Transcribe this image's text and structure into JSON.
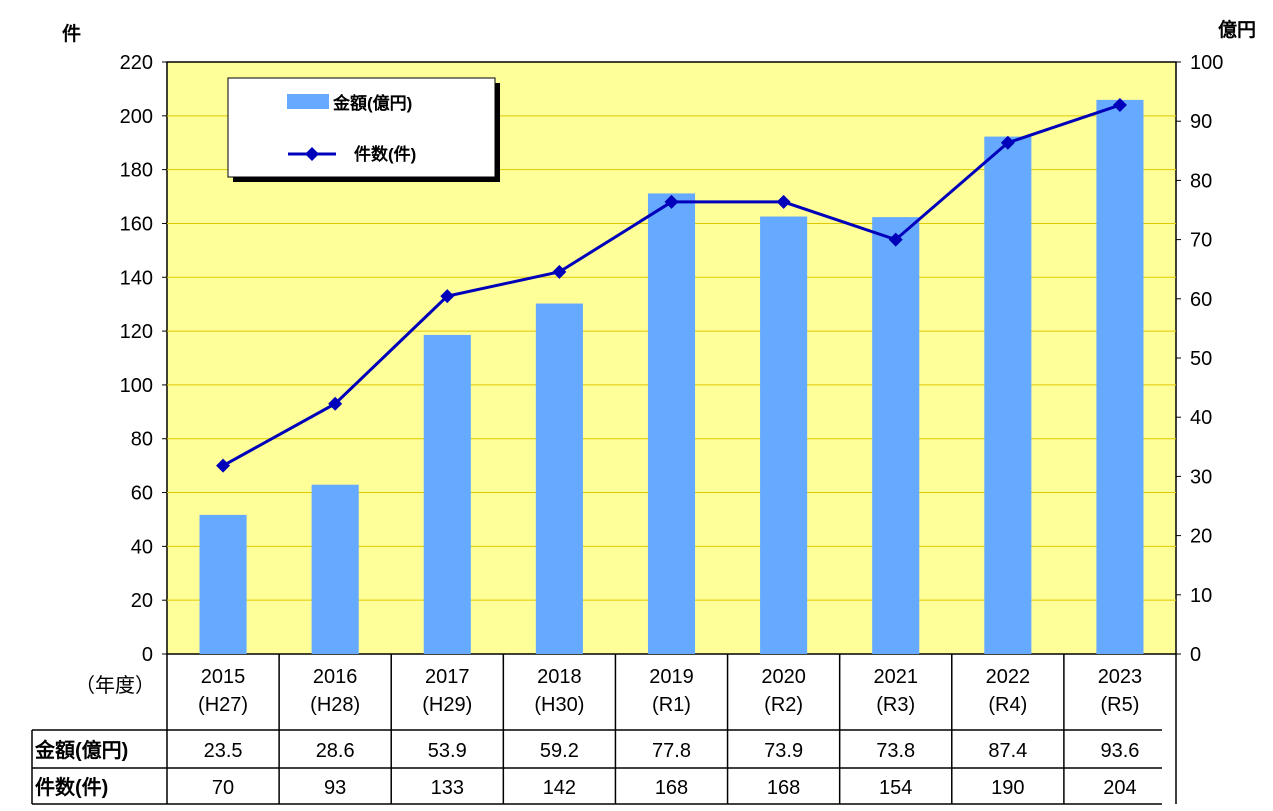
{
  "chart_data": {
    "type": "bar",
    "left_axis_unit": "件",
    "right_axis_unit": "億円",
    "year_label": "（年度）",
    "categories": [
      {
        "year": "2015",
        "era": "(H27)"
      },
      {
        "year": "2016",
        "era": "(H28)"
      },
      {
        "year": "2017",
        "era": "(H29)"
      },
      {
        "year": "2018",
        "era": "(H30)"
      },
      {
        "year": "2019",
        "era": "(R1)"
      },
      {
        "year": "2020",
        "era": "(R2)"
      },
      {
        "year": "2021",
        "era": "(R3)"
      },
      {
        "year": "2022",
        "era": "(R4)"
      },
      {
        "year": "2023",
        "era": "(R5)"
      }
    ],
    "y_left": {
      "range": [
        0,
        220
      ],
      "ticks": [
        0,
        20,
        40,
        60,
        80,
        100,
        120,
        140,
        160,
        180,
        200,
        220
      ]
    },
    "y_right": {
      "range": [
        0,
        100
      ],
      "ticks": [
        0,
        10,
        20,
        30,
        40,
        50,
        60,
        70,
        80,
        90,
        100
      ]
    },
    "grid": true,
    "legend_placement": "top-left",
    "series": [
      {
        "name": "金額(億円)",
        "type": "bar",
        "axis": "right",
        "color": "#66aaff",
        "values": [
          23.5,
          28.6,
          53.9,
          59.2,
          77.8,
          73.9,
          73.8,
          87.4,
          93.6
        ]
      },
      {
        "name": "件数(件)",
        "type": "line",
        "axis": "left",
        "color": "#0000bb",
        "values": [
          70,
          93,
          133,
          142,
          168,
          168,
          154,
          190,
          204
        ]
      }
    ],
    "table": {
      "rows": [
        {
          "label": "金額(億円)",
          "values": [
            "23.5",
            "28.6",
            "53.9",
            "59.2",
            "77.8",
            "73.9",
            "73.8",
            "87.4",
            "93.6"
          ]
        },
        {
          "label": "件数(件)",
          "values": [
            "70",
            "93",
            "133",
            "142",
            "168",
            "168",
            "154",
            "190",
            "204"
          ]
        }
      ]
    },
    "colors": {
      "plot_background": "#ffff99",
      "gridline": "#e0c800"
    }
  }
}
